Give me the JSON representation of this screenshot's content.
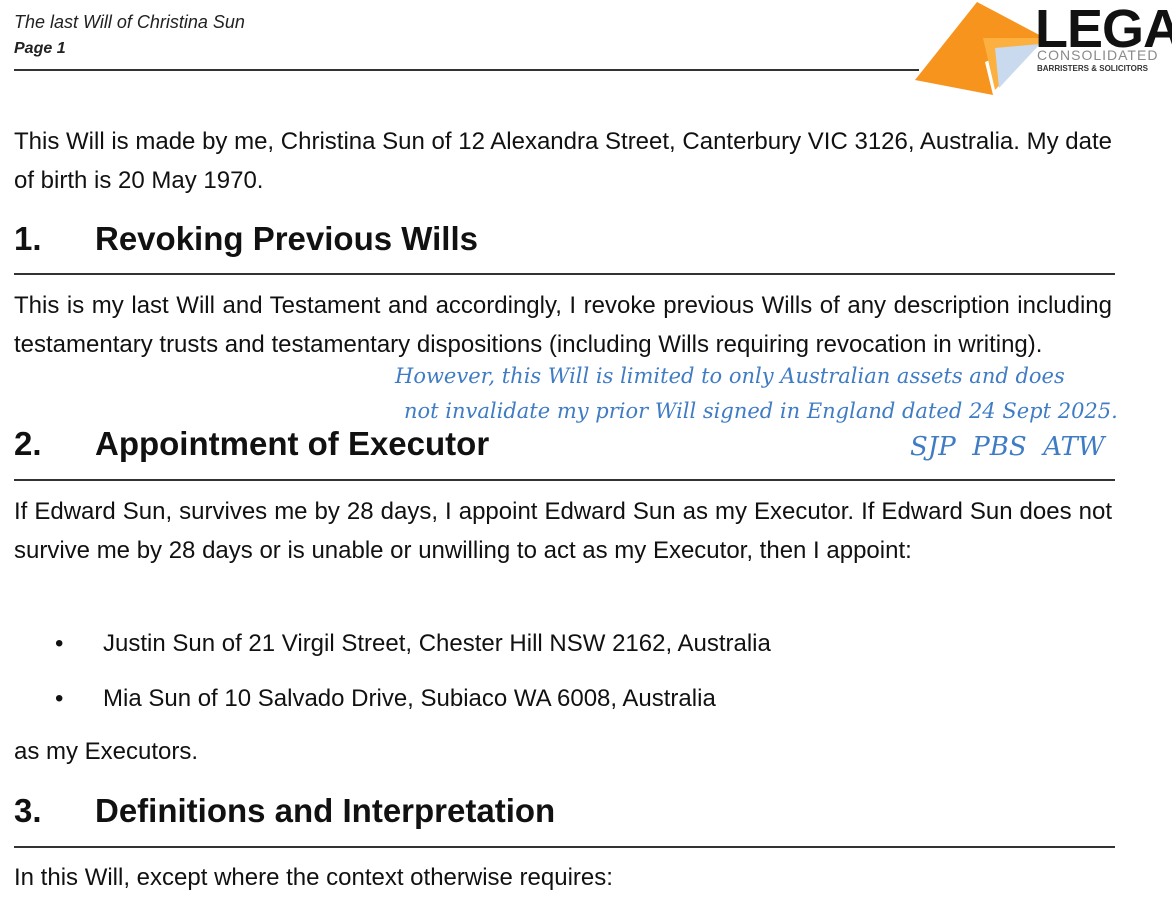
{
  "header": {
    "title": "The last Will of Christina Sun",
    "page": "Page 1",
    "logo": {
      "name": "LEGAL",
      "subtitle": "CONSOLIDATED",
      "tagline": "BARRISTERS & SOLICITORS",
      "colors": {
        "orange": "#f7941d",
        "text": "#111111",
        "gray": "#8a8a8a"
      }
    }
  },
  "intro": "This Will is made by me, Christina Sun of 12 Alexandra Street, Canterbury VIC 3126, Australia. My date of birth is 20 May 1970.",
  "sections": [
    {
      "num": "1.",
      "title": "Revoking Previous Wills",
      "body": "This is my last Will and Testament and accordingly, I revoke previous Wills of any description including testamentary trusts and testamentary dispositions (including Wills requiring revocation in writing)."
    },
    {
      "num": "2.",
      "title": "Appointment of Executor",
      "body": "If Edward Sun, survives me by 28 days, I appoint Edward Sun as my Executor. If Edward Sun does not survive me by 28 days or is unable or unwilling to act as my Executor, then I appoint:",
      "bullets": [
        "Justin Sun of 21 Virgil Street, Chester Hill NSW 2162, Australia",
        "Mia Sun of 10 Salvado Drive, Subiaco WA 6008, Australia"
      ],
      "after": "as my Executors."
    },
    {
      "num": "3.",
      "title": "Definitions and Interpretation",
      "body": "In this Will, except where the context otherwise requires:"
    }
  ],
  "annotation": {
    "line1": "However, this Will is limited to only Australian assets and does",
    "line2": "not invalidate my prior Will signed in England dated 24 Sept 2025.",
    "initials": "SJP  PBS  ATW",
    "color": "#3f7cc4"
  }
}
